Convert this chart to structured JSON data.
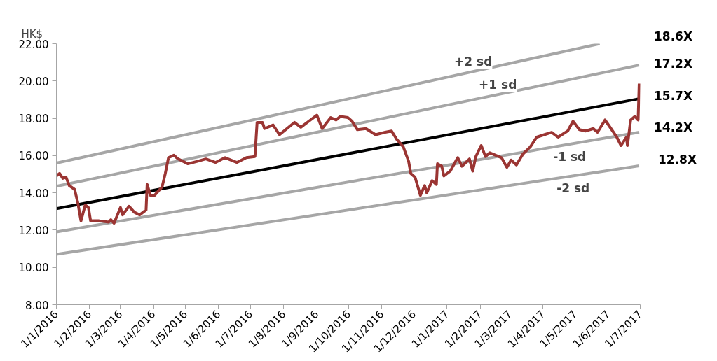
{
  "chart_data": {
    "type": "line",
    "ylabel": "HK$",
    "xlim": [
      "2016-01-01",
      "2017-07-01"
    ],
    "xticks": [
      {
        "value": "2016-01-01",
        "label": "1/1/2016"
      },
      {
        "value": "2016-02-01",
        "label": "1/2/2016"
      },
      {
        "value": "2016-03-01",
        "label": "1/3/2016"
      },
      {
        "value": "2016-04-01",
        "label": "1/4/2016"
      },
      {
        "value": "2016-05-01",
        "label": "1/5/2016"
      },
      {
        "value": "2016-06-01",
        "label": "1/6/2016"
      },
      {
        "value": "2016-07-01",
        "label": "1/7/2016"
      },
      {
        "value": "2016-08-01",
        "label": "1/8/2016"
      },
      {
        "value": "2016-09-01",
        "label": "1/9/2016"
      },
      {
        "value": "2016-10-01",
        "label": "1/10/2016"
      },
      {
        "value": "2016-11-01",
        "label": "1/11/2016"
      },
      {
        "value": "2016-12-01",
        "label": "1/12/2016"
      },
      {
        "value": "2017-01-01",
        "label": "1/1/2017"
      },
      {
        "value": "2017-02-01",
        "label": "1/2/2017"
      },
      {
        "value": "2017-03-01",
        "label": "1/3/2017"
      },
      {
        "value": "2017-04-01",
        "label": "1/4/2017"
      },
      {
        "value": "2017-05-01",
        "label": "1/5/2017"
      },
      {
        "value": "2017-06-01",
        "label": "1/6/2017"
      },
      {
        "value": "2017-07-01",
        "label": "1/7/2017"
      }
    ],
    "ylim": [
      8,
      22
    ],
    "yticks": [
      {
        "value": 8,
        "label": "8.00"
      },
      {
        "value": 10,
        "label": "10.00"
      },
      {
        "value": 12,
        "label": "12.00"
      },
      {
        "value": 14,
        "label": "14.00"
      },
      {
        "value": 16,
        "label": "16.00"
      },
      {
        "value": 18,
        "label": "18.00"
      },
      {
        "value": 20,
        "label": "20.00"
      },
      {
        "value": 22,
        "label": "22.00"
      }
    ],
    "grid": false,
    "marker": "none",
    "line_style": "solid",
    "series": [
      {
        "color": "#a6a6a6",
        "x": [
          "2016-01-01",
          "2017-05-24"
        ],
        "values": [
          15.6,
          22.0
        ]
      },
      {
        "color": "#a6a6a6",
        "x": [
          "2016-01-01",
          "2017-06-30"
        ],
        "values": [
          14.35,
          20.85
        ]
      },
      {
        "color": "#000000",
        "x": [
          "2016-01-01",
          "2017-06-30"
        ],
        "values": [
          13.15,
          19.05
        ]
      },
      {
        "color": "#a6a6a6",
        "x": [
          "2016-01-01",
          "2017-06-30"
        ],
        "values": [
          11.9,
          17.25
        ]
      },
      {
        "color": "#a6a6a6",
        "x": [
          "2016-01-01",
          "2017-06-30"
        ],
        "values": [
          10.7,
          15.45
        ]
      },
      {
        "color": "#9b3533",
        "x": [
          "2016-01-01",
          "2016-01-04",
          "2016-01-07",
          "2016-01-10",
          "2016-01-13",
          "2016-01-18",
          "2016-01-21",
          "2016-01-24",
          "2016-01-28",
          "2016-01-31",
          "2016-02-02",
          "2016-02-10",
          "2016-02-19",
          "2016-02-21",
          "2016-02-24",
          "2016-03-01",
          "2016-03-03",
          "2016-03-09",
          "2016-03-14",
          "2016-03-19",
          "2016-03-25",
          "2016-03-26",
          "2016-03-29",
          "2016-04-02",
          "2016-04-09",
          "2016-04-12",
          "2016-04-15",
          "2016-04-20",
          "2016-04-24",
          "2016-05-03",
          "2016-05-12",
          "2016-05-20",
          "2016-05-29",
          "2016-06-07",
          "2016-06-18",
          "2016-06-27",
          "2016-07-05",
          "2016-07-07",
          "2016-07-12",
          "2016-07-14",
          "2016-07-22",
          "2016-07-28",
          "2016-08-04",
          "2016-08-11",
          "2016-08-17",
          "2016-08-26",
          "2016-09-01",
          "2016-09-06",
          "2016-09-14",
          "2016-09-19",
          "2016-09-23",
          "2016-09-30",
          "2016-10-04",
          "2016-10-09",
          "2016-10-17",
          "2016-10-26",
          "2016-11-04",
          "2016-11-10",
          "2016-11-15",
          "2016-11-21",
          "2016-11-26",
          "2016-11-28",
          "2016-12-02",
          "2016-12-07",
          "2016-12-11",
          "2016-12-13",
          "2016-12-18",
          "2016-12-22",
          "2016-12-23",
          "2016-12-27",
          "2016-12-29",
          "2017-01-04",
          "2017-01-11",
          "2017-01-15",
          "2017-01-22",
          "2017-01-25",
          "2017-01-28",
          "2017-02-02",
          "2017-02-06",
          "2017-02-10",
          "2017-02-21",
          "2017-02-26",
          "2017-03-02",
          "2017-03-07",
          "2017-03-13",
          "2017-03-20",
          "2017-03-26",
          "2017-04-02",
          "2017-04-09",
          "2017-04-15",
          "2017-04-24",
          "2017-04-29",
          "2017-05-05",
          "2017-05-11",
          "2017-05-18",
          "2017-05-22",
          "2017-05-29",
          "2017-06-02",
          "2017-06-09",
          "2017-06-13",
          "2017-06-18",
          "2017-06-19",
          "2017-06-22",
          "2017-06-26",
          "2017-06-29",
          "2017-06-30"
        ],
        "values": [
          14.91,
          15.04,
          14.78,
          14.84,
          14.39,
          14.19,
          13.48,
          12.5,
          13.35,
          13.21,
          12.5,
          12.5,
          12.43,
          12.56,
          12.37,
          13.21,
          12.82,
          13.28,
          12.96,
          12.82,
          13.08,
          14.45,
          13.87,
          13.87,
          14.32,
          15.04,
          15.89,
          16.02,
          15.82,
          15.56,
          15.69,
          15.82,
          15.63,
          15.89,
          15.63,
          15.89,
          15.95,
          17.78,
          17.78,
          17.45,
          17.64,
          17.12,
          17.45,
          17.78,
          17.52,
          17.91,
          18.17,
          17.45,
          18.04,
          17.91,
          18.1,
          18.04,
          17.84,
          17.39,
          17.45,
          17.12,
          17.25,
          17.32,
          16.86,
          16.47,
          15.69,
          15.04,
          14.84,
          13.87,
          14.39,
          14.0,
          14.65,
          14.45,
          15.56,
          15.43,
          14.91,
          15.17,
          15.89,
          15.43,
          15.82,
          15.17,
          15.95,
          16.54,
          15.95,
          16.15,
          15.89,
          15.37,
          15.76,
          15.5,
          16.08,
          16.47,
          16.99,
          17.12,
          17.25,
          16.99,
          17.32,
          17.84,
          17.39,
          17.32,
          17.45,
          17.25,
          17.91,
          17.58,
          16.99,
          16.54,
          16.99,
          16.54,
          17.91,
          18.1,
          17.91,
          19.86
        ]
      }
    ],
    "annotations": [
      "+2 sd",
      "+1 sd",
      "-1 sd",
      "-2 sd",
      "18.6X",
      "17.2X",
      "15.7X",
      "14.2X",
      "12.8X"
    ]
  }
}
